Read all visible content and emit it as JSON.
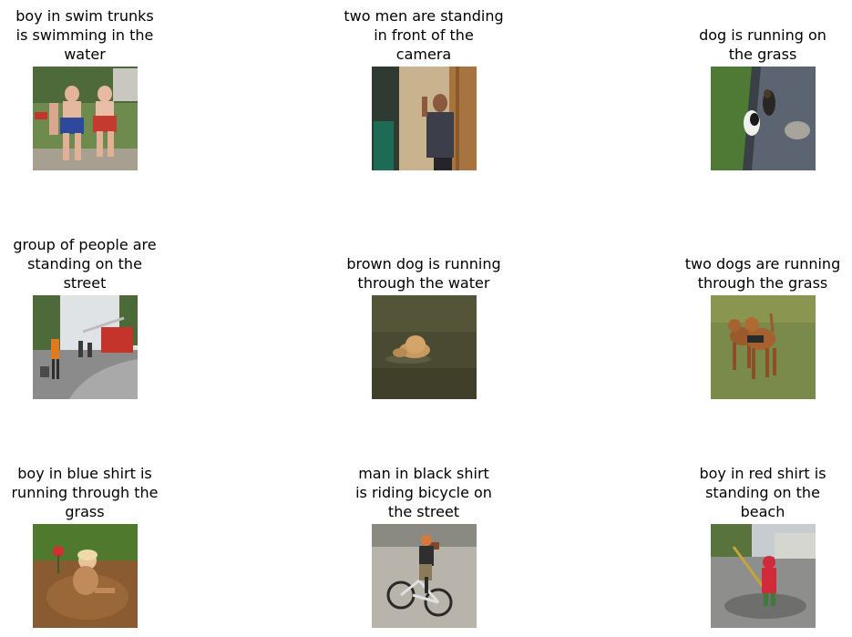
{
  "grid": {
    "items": [
      {
        "caption_lines": [
          "boy in swim trunks",
          "is swimming in the",
          "water"
        ],
        "image_subject": "children running on grass"
      },
      {
        "caption_lines": [
          "two men are standing",
          "in front of the",
          "camera"
        ],
        "image_subject": "man smoking by doorway"
      },
      {
        "caption_lines": [
          "dog is running on",
          "the grass"
        ],
        "image_subject": "dogs on pavement by grass"
      },
      {
        "caption_lines": [
          "group of people are",
          "standing on the",
          "street"
        ],
        "image_subject": "people on street near fire truck"
      },
      {
        "caption_lines": [
          "brown dog is running",
          "through the water"
        ],
        "image_subject": "dog swimming in water"
      },
      {
        "caption_lines": [
          "two dogs are running",
          "through the grass"
        ],
        "image_subject": "two brown dogs on grass"
      },
      {
        "caption_lines": [
          "boy in blue shirt is",
          "running through the",
          "grass"
        ],
        "image_subject": "child playing in mud"
      },
      {
        "caption_lines": [
          "man in black shirt",
          "is riding bicycle on",
          "the street"
        ],
        "image_subject": "man riding bicycle"
      },
      {
        "caption_lines": [
          "boy in red shirt is",
          "standing on the",
          "beach"
        ],
        "image_subject": "child in red raincoat in puddle"
      }
    ]
  },
  "colors": {
    "background": "#ffffff",
    "text": "#000000"
  }
}
